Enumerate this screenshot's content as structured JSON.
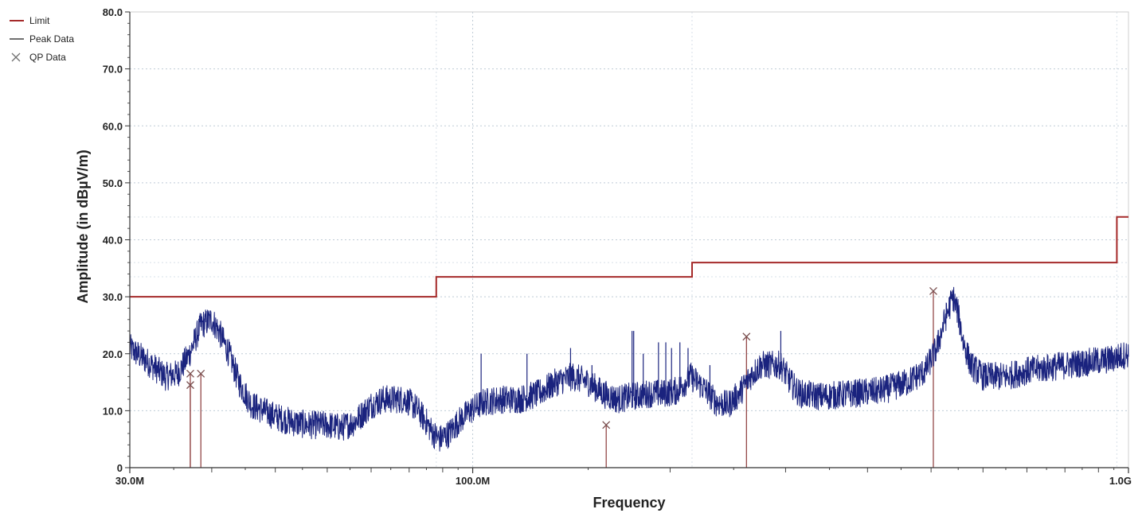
{
  "chart_data": {
    "type": "line",
    "xlabel": "Frequency",
    "ylabel": "Amplitude (in dBµV/m)",
    "x_scale": "log",
    "x_range_mhz": [
      30,
      1000
    ],
    "x_ticks": [
      {
        "mhz": 30,
        "label": "30.0M"
      },
      {
        "mhz": 100,
        "label": "100.0M"
      },
      {
        "mhz": 1000,
        "label": "1.0G"
      }
    ],
    "ylim": [
      0,
      80
    ],
    "y_ticks": [
      {
        "value": 0,
        "label": "0"
      },
      {
        "value": 10,
        "label": "10.0"
      },
      {
        "value": 20,
        "label": "20.0"
      },
      {
        "value": 30,
        "label": "30.0"
      },
      {
        "value": 40,
        "label": "40.0"
      },
      {
        "value": 50,
        "label": "50.0"
      },
      {
        "value": 60,
        "label": "60.0"
      },
      {
        "value": 70,
        "label": "70.0"
      },
      {
        "value": 80,
        "label": "80.0"
      }
    ],
    "grid": "dotted",
    "legend_position": "top-left",
    "legend": [
      {
        "label": "Limit",
        "symbol": "line",
        "color": "#a52a2a"
      },
      {
        "label": "Peak Data",
        "symbol": "line",
        "color": "#707070"
      },
      {
        "label": "QP Data",
        "symbol": "x",
        "color": "#707070"
      }
    ],
    "series": [
      {
        "name": "Limit",
        "color": "#a52a2a",
        "step_segments": [
          {
            "from_mhz": 30,
            "to_mhz": 88,
            "value": 30
          },
          {
            "from_mhz": 88,
            "to_mhz": 216,
            "value": 33.5
          },
          {
            "from_mhz": 216,
            "to_mhz": 960,
            "value": 36
          },
          {
            "from_mhz": 960,
            "to_mhz": 1000,
            "value": 44
          }
        ]
      },
      {
        "name": "Peak Data",
        "color": "#1a237e",
        "noise_amplitude": 2.5,
        "points": [
          [
            30,
            21
          ],
          [
            32,
            18.5
          ],
          [
            34,
            16
          ],
          [
            35.5,
            16.5
          ],
          [
            37,
            20
          ],
          [
            38.5,
            25
          ],
          [
            40,
            26
          ],
          [
            41,
            24
          ],
          [
            42.5,
            20
          ],
          [
            44,
            15
          ],
          [
            46,
            11
          ],
          [
            48,
            10
          ],
          [
            50,
            9
          ],
          [
            53,
            8
          ],
          [
            56,
            7.5
          ],
          [
            60,
            7.5
          ],
          [
            63,
            7
          ],
          [
            66,
            8
          ],
          [
            70,
            11
          ],
          [
            73,
            12
          ],
          [
            76,
            12
          ],
          [
            79,
            12
          ],
          [
            82,
            10.5
          ],
          [
            85,
            8
          ],
          [
            87,
            6
          ],
          [
            89,
            5
          ],
          [
            92,
            6
          ],
          [
            95,
            8
          ],
          [
            99,
            10
          ],
          [
            104,
            11.5
          ],
          [
            110,
            12
          ],
          [
            118,
            12
          ],
          [
            126,
            13
          ],
          [
            134,
            15
          ],
          [
            142,
            16
          ],
          [
            150,
            15
          ],
          [
            158,
            13
          ],
          [
            166,
            12
          ],
          [
            175,
            12.5
          ],
          [
            185,
            13
          ],
          [
            195,
            13
          ],
          [
            205,
            13.5
          ],
          [
            215,
            16
          ],
          [
            225,
            14
          ],
          [
            235,
            11.5
          ],
          [
            245,
            11
          ],
          [
            255,
            13
          ],
          [
            265,
            16
          ],
          [
            275,
            18
          ],
          [
            285,
            18
          ],
          [
            295,
            18
          ],
          [
            305,
            15
          ],
          [
            315,
            13
          ],
          [
            340,
            12.5
          ],
          [
            380,
            13
          ],
          [
            420,
            13.5
          ],
          [
            460,
            15
          ],
          [
            490,
            17
          ],
          [
            510,
            21
          ],
          [
            525,
            26
          ],
          [
            540,
            30
          ],
          [
            550,
            27
          ],
          [
            560,
            22
          ],
          [
            575,
            18
          ],
          [
            600,
            16
          ],
          [
            650,
            16
          ],
          [
            700,
            17
          ],
          [
            750,
            17.5
          ],
          [
            800,
            18
          ],
          [
            870,
            18.5
          ],
          [
            940,
            19
          ],
          [
            1000,
            20
          ]
        ]
      }
    ],
    "spikes": [
      {
        "mhz": 103,
        "value": 20
      },
      {
        "mhz": 121,
        "value": 20
      },
      {
        "mhz": 141,
        "value": 21
      },
      {
        "mhz": 152,
        "value": 18
      },
      {
        "mhz": 175,
        "value": 24
      },
      {
        "mhz": 176,
        "value": 24
      },
      {
        "mhz": 182,
        "value": 20
      },
      {
        "mhz": 192,
        "value": 22
      },
      {
        "mhz": 197,
        "value": 22
      },
      {
        "mhz": 201,
        "value": 21
      },
      {
        "mhz": 207,
        "value": 22
      },
      {
        "mhz": 213,
        "value": 21
      },
      {
        "mhz": 230,
        "value": 18
      },
      {
        "mhz": 295,
        "value": 24
      }
    ],
    "qp_markers": [
      {
        "mhz": 37.1,
        "value": 16.5
      },
      {
        "mhz": 37.1,
        "value": 14.5
      },
      {
        "mhz": 38.5,
        "value": 16.5
      },
      {
        "mhz": 159.8,
        "value": 7.5
      },
      {
        "mhz": 261.5,
        "value": 23
      },
      {
        "mhz": 504,
        "value": 31
      }
    ]
  }
}
